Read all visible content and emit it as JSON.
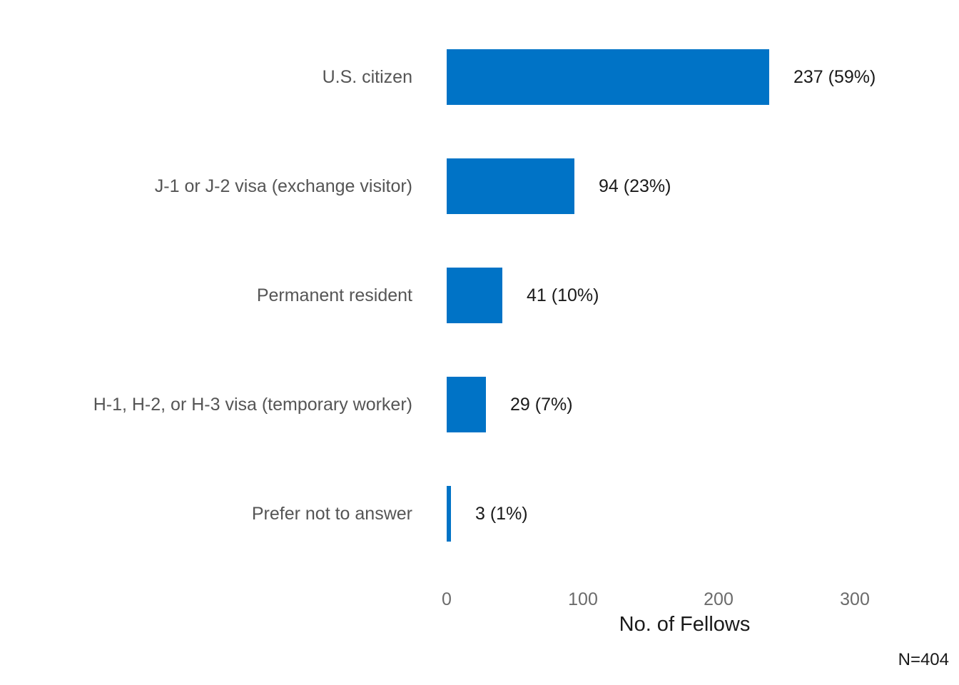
{
  "chart_data": {
    "type": "bar",
    "orientation": "horizontal",
    "categories": [
      "U.S. citizen",
      "J-1 or J-2 visa (exchange visitor)",
      "Permanent resident",
      "H-1, H-2, or H-3 visa (temporary worker)",
      "Prefer not to answer"
    ],
    "values": [
      237,
      94,
      41,
      29,
      3
    ],
    "percents": [
      59,
      23,
      10,
      7,
      1
    ],
    "value_labels": [
      "237 (59%)",
      "94 (23%)",
      "41 (10%)",
      "29 (7%)",
      "3 (1%)"
    ],
    "title": "",
    "xlabel": "No. of Fellows",
    "ylabel": "",
    "xticks": [
      0,
      100,
      200,
      300
    ],
    "xlim": [
      0,
      350
    ],
    "grid": false,
    "legend": false,
    "note": "N=404",
    "bar_color": "#0073C6",
    "category_label_color": "#555555",
    "tick_label_color": "#6b6b6b",
    "value_label_color": "#1a1a1a",
    "background_color": "#ffffff"
  }
}
